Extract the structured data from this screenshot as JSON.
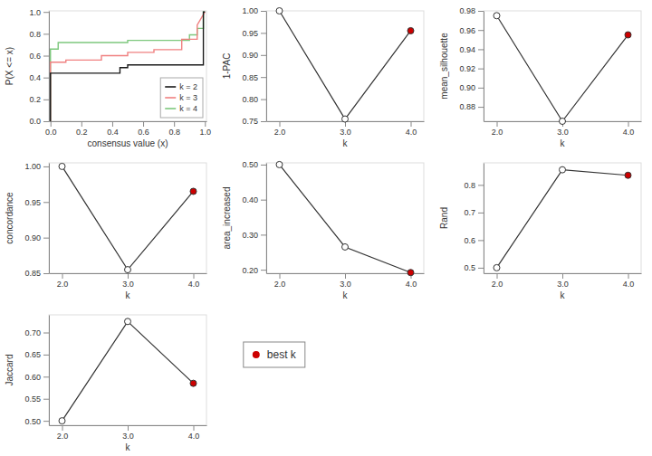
{
  "chart_data": [
    {
      "type": "line",
      "xlabel": "consensus value (x)",
      "ylabel": "P(X <= x)",
      "series": [
        {
          "name": "k = 2",
          "color": "#1a1a1a",
          "x": [
            0,
            1e-05,
            0.45,
            0.45,
            0.5,
            0.5,
            0.99,
            0.99,
            1.0
          ],
          "values": [
            0,
            0.44,
            0.44,
            0.49,
            0.49,
            0.515,
            0.515,
            1.0,
            1.0
          ]
        },
        {
          "name": "k = 3",
          "color": "#f08080",
          "x": [
            0,
            1e-05,
            0.1,
            0.1,
            0.33,
            0.33,
            0.5,
            0.5,
            0.67,
            0.67,
            0.85,
            0.85,
            0.95,
            0.95,
            1.0
          ],
          "values": [
            0,
            0.54,
            0.54,
            0.56,
            0.56,
            0.6,
            0.6,
            0.63,
            0.63,
            0.655,
            0.655,
            0.75,
            0.75,
            0.88,
            1.0
          ]
        },
        {
          "name": "k = 4",
          "color": "#7dc87d",
          "x": [
            0,
            1e-05,
            0.05,
            0.05,
            0.5,
            0.5,
            0.9,
            0.9,
            0.95,
            0.95,
            0.99,
            0.99,
            1.0
          ],
          "values": [
            0,
            0.66,
            0.66,
            0.72,
            0.72,
            0.74,
            0.74,
            0.79,
            0.79,
            0.85,
            0.85,
            1.0,
            1.0
          ]
        }
      ],
      "xlim": [
        -0.01,
        1.01
      ],
      "ylim": [
        0,
        1.01
      ],
      "xticks": [
        {
          "value": 0,
          "label": "0.0"
        },
        0.2,
        0.4,
        0.6,
        0.8,
        {
          "value": 1,
          "label": "1.0"
        }
      ],
      "yticks": [
        {
          "value": 0,
          "label": "0.0"
        },
        0.2,
        0.4,
        0.6,
        0.8,
        {
          "value": 1,
          "label": "1.0"
        }
      ],
      "legend": "lower right"
    },
    {
      "type": "line",
      "xlabel": "k",
      "ylabel": "1-PAC",
      "x": [
        2,
        3,
        4
      ],
      "values": [
        1.0,
        0.755,
        0.955
      ],
      "color": "#333333",
      "colors": [
        "#ffffff",
        "#ffffff",
        "#cc0000"
      ],
      "marker": "circle",
      "xlim": [
        1.8,
        4.2
      ],
      "ylim": [
        0.75,
        1.0
      ],
      "xticks": [
        {
          "value": 2,
          "label": "2.0"
        },
        {
          "value": 3,
          "label": "3.0"
        },
        {
          "value": 4,
          "label": "4.0"
        }
      ],
      "yticks": [
        0.75,
        {
          "value": 0.8,
          "label": "0.80"
        },
        0.85,
        {
          "value": 0.9,
          "label": "0.90"
        },
        0.95,
        {
          "value": 1.0,
          "label": "1.00"
        }
      ]
    },
    {
      "type": "line",
      "xlabel": "k",
      "ylabel": "mean_silhouette",
      "x": [
        2,
        3,
        4
      ],
      "values": [
        0.975,
        0.865,
        0.955
      ],
      "color": "#333333",
      "colors": [
        "#ffffff",
        "#ffffff",
        "#cc0000"
      ],
      "marker": "circle",
      "xlim": [
        1.8,
        4.2
      ],
      "ylim": [
        0.865,
        0.98
      ],
      "xticks": [
        {
          "value": 2,
          "label": "2.0"
        },
        {
          "value": 3,
          "label": "3.0"
        },
        {
          "value": 4,
          "label": "4.0"
        }
      ],
      "yticks": [
        0.88,
        {
          "value": 0.9,
          "label": "0.90"
        },
        0.92,
        0.94,
        0.96,
        0.98
      ]
    },
    {
      "type": "line",
      "xlabel": "k",
      "ylabel": "concordance",
      "x": [
        2,
        3,
        4
      ],
      "values": [
        1.0,
        0.855,
        0.965
      ],
      "color": "#333333",
      "colors": [
        "#ffffff",
        "#ffffff",
        "#cc0000"
      ],
      "marker": "circle",
      "xlim": [
        1.8,
        4.2
      ],
      "ylim": [
        0.85,
        1.005
      ],
      "xticks": [
        {
          "value": 2,
          "label": "2.0"
        },
        {
          "value": 3,
          "label": "3.0"
        },
        {
          "value": 4,
          "label": "4.0"
        }
      ],
      "yticks": [
        0.85,
        {
          "value": 0.9,
          "label": "0.90"
        },
        0.95,
        {
          "value": 1.0,
          "label": "1.00"
        }
      ]
    },
    {
      "type": "line",
      "xlabel": "k",
      "ylabel": "area_increased",
      "x": [
        2,
        3,
        4
      ],
      "values": [
        0.5,
        0.265,
        0.192
      ],
      "color": "#333333",
      "colors": [
        "#ffffff",
        "#ffffff",
        "#cc0000"
      ],
      "marker": "circle",
      "xlim": [
        1.8,
        4.2
      ],
      "ylim": [
        0.19,
        0.505
      ],
      "xticks": [
        {
          "value": 2,
          "label": "2.0"
        },
        {
          "value": 3,
          "label": "3.0"
        },
        {
          "value": 4,
          "label": "4.0"
        }
      ],
      "yticks": [
        {
          "value": 0.2,
          "label": "0.20"
        },
        {
          "value": 0.3,
          "label": "0.30"
        },
        {
          "value": 0.4,
          "label": "0.40"
        },
        {
          "value": 0.5,
          "label": "0.50"
        }
      ]
    },
    {
      "type": "line",
      "xlabel": "k",
      "ylabel": "Rand",
      "x": [
        2,
        3,
        4
      ],
      "values": [
        0.5,
        0.855,
        0.835
      ],
      "color": "#333333",
      "colors": [
        "#ffffff",
        "#ffffff",
        "#cc0000"
      ],
      "marker": "circle",
      "xlim": [
        1.8,
        4.2
      ],
      "ylim": [
        0.48,
        0.88
      ],
      "xticks": [
        {
          "value": 2,
          "label": "2.0"
        },
        {
          "value": 3,
          "label": "3.0"
        },
        {
          "value": 4,
          "label": "4.0"
        }
      ],
      "yticks": [
        0.5,
        0.6,
        0.7,
        0.8
      ]
    },
    {
      "type": "line",
      "xlabel": "k",
      "ylabel": "Jaccard",
      "x": [
        2,
        3,
        4
      ],
      "values": [
        0.5,
        0.725,
        0.585
      ],
      "color": "#333333",
      "colors": [
        "#ffffff",
        "#ffffff",
        "#cc0000"
      ],
      "marker": "circle",
      "xlim": [
        1.8,
        4.2
      ],
      "ylim": [
        0.49,
        0.74
      ],
      "xticks": [
        {
          "value": 2,
          "label": "2.0"
        },
        {
          "value": 3,
          "label": "3.0"
        },
        {
          "value": 4,
          "label": "4.0"
        }
      ],
      "yticks": [
        {
          "value": 0.5,
          "label": "0.50"
        },
        0.55,
        {
          "value": 0.6,
          "label": "0.60"
        },
        0.65,
        {
          "value": 0.7,
          "label": "0.70"
        }
      ]
    },
    {
      "type": "legend",
      "series": [
        {
          "name": "best k",
          "color": "#cc0000",
          "marker": "circle"
        }
      ]
    }
  ]
}
